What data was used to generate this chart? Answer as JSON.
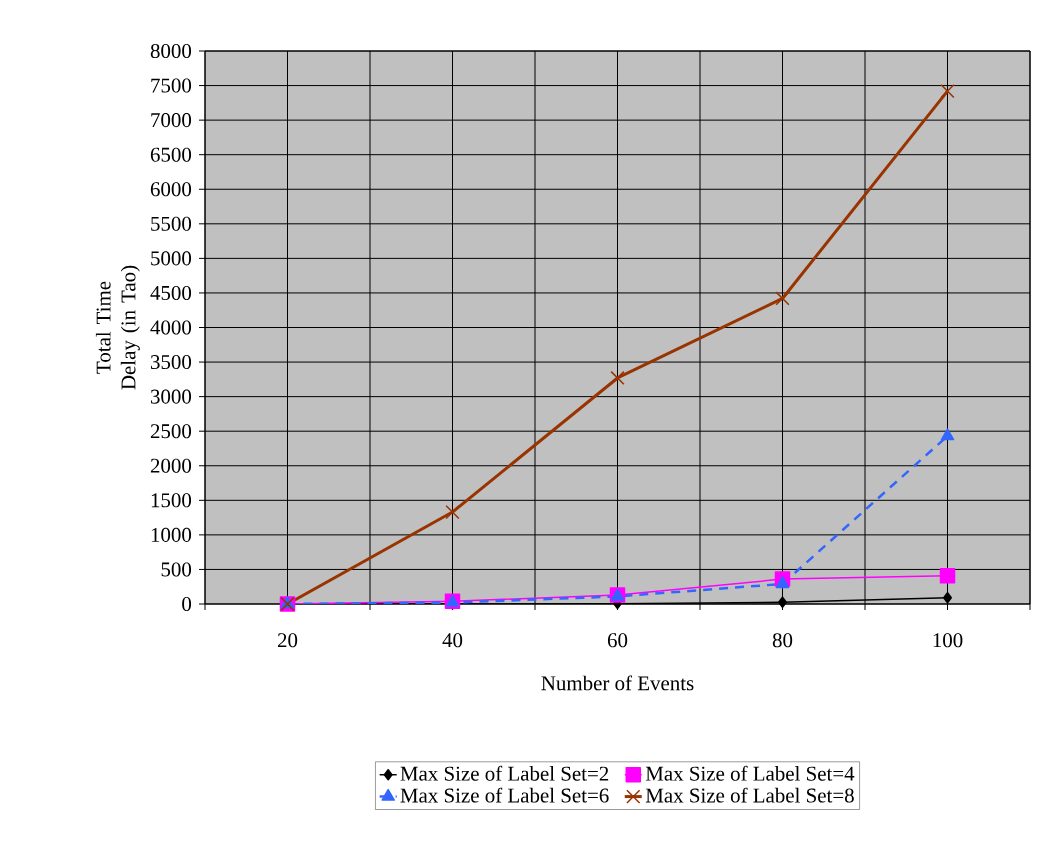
{
  "chart_data": {
    "type": "line",
    "xlabel": "Number of Events",
    "ylabel": "Total Time Delay (in Tao)",
    "x": [
      20,
      40,
      60,
      80,
      100
    ],
    "series": [
      {
        "name": "Max Size of Label Set=2",
        "color": "#000000",
        "marker": "diamond",
        "line_style": "solid",
        "values": [
          0,
          0,
          5,
          25,
          90
        ]
      },
      {
        "name": "Max Size of Label Set=4",
        "color": "#ff00ff",
        "marker": "square",
        "line_style": "solid",
        "values": [
          0,
          40,
          130,
          360,
          410
        ]
      },
      {
        "name": "Max Size of Label Set=6",
        "color": "#3366ff",
        "marker": "triangle",
        "line_style": "dashed",
        "values": [
          0,
          20,
          110,
          290,
          2430
        ]
      },
      {
        "name": "Max Size of Label Set=8",
        "color": "#993300",
        "marker": "cross",
        "line_style": "solid",
        "values": [
          0,
          1330,
          3270,
          4420,
          7420
        ]
      }
    ],
    "xlim": [
      10,
      110
    ],
    "xticks": [
      {
        "value": 10,
        "label": null
      },
      20,
      {
        "value": 30,
        "label": null
      },
      40,
      {
        "value": 50,
        "label": null
      },
      60,
      {
        "value": 70,
        "label": null
      },
      80,
      {
        "value": 90,
        "label": null
      },
      100,
      {
        "value": 110,
        "label": null
      }
    ],
    "ylim": [
      0,
      8000
    ],
    "yticks": [
      0,
      500,
      1000,
      1500,
      2000,
      2500,
      3000,
      3500,
      4000,
      4500,
      5000,
      5500,
      6000,
      6500,
      7000,
      7500,
      8000
    ],
    "grid": true,
    "legend": "bottom"
  }
}
